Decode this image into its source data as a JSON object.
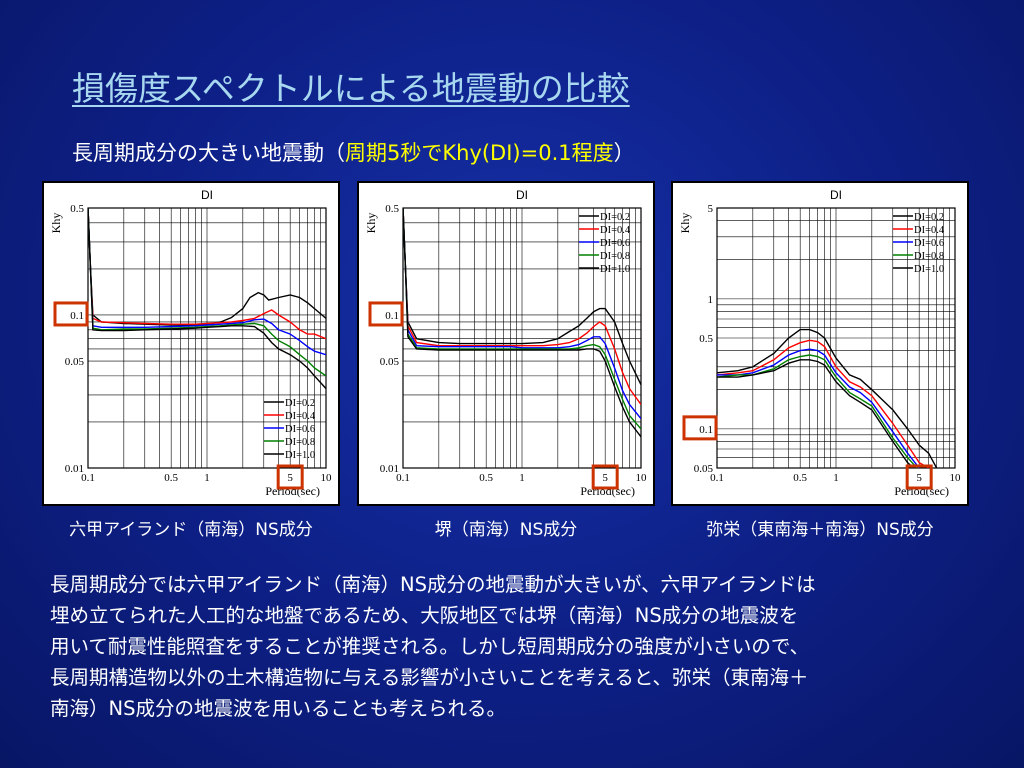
{
  "slide": {
    "title": "損傷度スペクトルによる地震動の比較",
    "subtitle_main": "長周期成分の大きい地震動（",
    "subtitle_highlight": "周期5秒でKhy(DI)=0.1程度",
    "subtitle_end": "）",
    "highlight_color": "#ffff00",
    "body_lines": [
      "長周期成分では六甲アイランド（南海）NS成分の地震動が大きいが、六甲アイランドは",
      "埋め立てられた人工的な地盤であるため、大阪地区では堺（南海）NS成分の地震波を",
      "用いて耐震性能照査をすることが推奨される。しかし短周期成分の強度が小さいので、",
      "長周期構造物以外の土木構造物に与える影響が小さいことを考えると、弥栄（東南海＋",
      "南海）NS成分の地震波を用いることも考えられる。"
    ]
  },
  "chart_data": [
    {
      "type": "line",
      "title": "DI",
      "caption": "六甲アイランド（南海）NS成分",
      "xlabel": "Period(sec)",
      "ylabel": "Khy",
      "xscale": "log",
      "yscale": "log",
      "xlim": [
        0.1,
        10
      ],
      "ylim": [
        0.01,
        0.5
      ],
      "xticks": [
        "0.1",
        "0.5",
        "1",
        "5",
        "10"
      ],
      "yticks": [
        "0.01",
        "0.05",
        "0.1",
        "0.5"
      ],
      "legend_position": "bottom-right",
      "highlight_boxes": [
        "0.1",
        "5"
      ],
      "highlight_color": "#cc3300",
      "series": [
        {
          "name": "DI=0.2",
          "color": "#000000",
          "x": [
            0.1,
            0.105,
            0.11,
            0.13,
            0.2,
            0.3,
            0.5,
            0.8,
            1.0,
            1.3,
            1.6,
            2.0,
            2.3,
            2.7,
            3.0,
            3.3,
            4.0,
            5.0,
            6.0,
            7.0,
            8.0,
            10.0
          ],
          "y": [
            0.5,
            0.2,
            0.1,
            0.09,
            0.088,
            0.087,
            0.086,
            0.086,
            0.087,
            0.09,
            0.096,
            0.11,
            0.13,
            0.14,
            0.135,
            0.125,
            0.13,
            0.135,
            0.13,
            0.12,
            0.11,
            0.095
          ]
        },
        {
          "name": "DI=0.4",
          "color": "#ff0000",
          "x": [
            0.1,
            0.105,
            0.11,
            0.13,
            0.2,
            0.3,
            0.5,
            0.8,
            1.0,
            1.3,
            1.6,
            2.0,
            2.5,
            3.0,
            3.5,
            4.0,
            5.0,
            6.0,
            7.0,
            8.0,
            10.0
          ],
          "y": [
            0.5,
            0.2,
            0.095,
            0.09,
            0.089,
            0.088,
            0.087,
            0.087,
            0.088,
            0.089,
            0.09,
            0.092,
            0.095,
            0.102,
            0.108,
            0.1,
            0.09,
            0.08,
            0.075,
            0.075,
            0.07
          ]
        },
        {
          "name": "DI=0.6",
          "color": "#0000ff",
          "x": [
            0.1,
            0.105,
            0.11,
            0.13,
            0.2,
            0.3,
            0.5,
            0.8,
            1.0,
            1.3,
            1.6,
            2.0,
            2.5,
            3.0,
            3.5,
            4.0,
            5.0,
            6.0,
            7.0,
            8.0,
            10.0
          ],
          "y": [
            0.5,
            0.2,
            0.085,
            0.083,
            0.083,
            0.083,
            0.084,
            0.085,
            0.086,
            0.087,
            0.088,
            0.089,
            0.093,
            0.094,
            0.088,
            0.08,
            0.075,
            0.068,
            0.062,
            0.058,
            0.055
          ]
        },
        {
          "name": "DI=0.8",
          "color": "#008000",
          "x": [
            0.1,
            0.105,
            0.11,
            0.13,
            0.2,
            0.3,
            0.5,
            0.8,
            1.0,
            1.3,
            1.6,
            2.0,
            2.5,
            3.0,
            3.5,
            4.0,
            5.0,
            6.0,
            7.0,
            8.0,
            10.0
          ],
          "y": [
            0.5,
            0.2,
            0.082,
            0.08,
            0.081,
            0.081,
            0.082,
            0.083,
            0.084,
            0.085,
            0.086,
            0.087,
            0.088,
            0.085,
            0.075,
            0.068,
            0.062,
            0.055,
            0.05,
            0.045,
            0.04
          ]
        },
        {
          "name": "DI=1.0",
          "color": "#000000",
          "x": [
            0.1,
            0.105,
            0.11,
            0.13,
            0.2,
            0.3,
            0.5,
            0.8,
            1.0,
            1.3,
            1.6,
            2.0,
            2.5,
            3.0,
            3.5,
            4.0,
            5.0,
            6.0,
            7.0,
            8.0,
            10.0
          ],
          "y": [
            0.5,
            0.2,
            0.08,
            0.079,
            0.079,
            0.08,
            0.081,
            0.082,
            0.083,
            0.084,
            0.085,
            0.085,
            0.084,
            0.076,
            0.066,
            0.06,
            0.055,
            0.05,
            0.045,
            0.04,
            0.033
          ]
        }
      ]
    },
    {
      "type": "line",
      "title": "DI",
      "caption": "堺（南海）NS成分",
      "xlabel": "Period(sec)",
      "ylabel": "Khy",
      "xscale": "log",
      "yscale": "log",
      "xlim": [
        0.1,
        10
      ],
      "ylim": [
        0.01,
        0.5
      ],
      "xticks": [
        "0.1",
        "0.5",
        "1",
        "5",
        "10"
      ],
      "yticks": [
        "0.01",
        "0.05",
        "0.1",
        "0.5"
      ],
      "legend_position": "top-right",
      "highlight_boxes": [
        "0.1",
        "5"
      ],
      "highlight_color": "#cc3300",
      "series": [
        {
          "name": "DI=0.2",
          "color": "#000000",
          "x": [
            0.1,
            0.105,
            0.11,
            0.13,
            0.2,
            0.3,
            0.5,
            0.8,
            1.0,
            1.5,
            2.0,
            2.5,
            3.0,
            3.5,
            4.0,
            4.5,
            5.0,
            6.0,
            7.0,
            8.0,
            10.0
          ],
          "y": [
            0.5,
            0.2,
            0.09,
            0.07,
            0.066,
            0.065,
            0.065,
            0.065,
            0.065,
            0.066,
            0.07,
            0.078,
            0.085,
            0.095,
            0.105,
            0.11,
            0.11,
            0.09,
            0.065,
            0.05,
            0.035
          ]
        },
        {
          "name": "DI=0.4",
          "color": "#ff0000",
          "x": [
            0.1,
            0.105,
            0.11,
            0.13,
            0.2,
            0.3,
            0.5,
            0.8,
            1.0,
            1.5,
            2.0,
            2.5,
            3.0,
            3.5,
            4.0,
            4.5,
            5.0,
            6.0,
            7.0,
            8.0,
            10.0
          ],
          "y": [
            0.5,
            0.2,
            0.085,
            0.066,
            0.063,
            0.063,
            0.063,
            0.063,
            0.063,
            0.063,
            0.064,
            0.066,
            0.07,
            0.076,
            0.084,
            0.09,
            0.085,
            0.06,
            0.042,
            0.033,
            0.026
          ]
        },
        {
          "name": "DI=0.6",
          "color": "#0000ff",
          "x": [
            0.1,
            0.105,
            0.11,
            0.13,
            0.2,
            0.3,
            0.5,
            0.8,
            1.0,
            1.5,
            2.0,
            2.5,
            3.0,
            3.5,
            4.0,
            4.5,
            5.0,
            6.0,
            7.0,
            8.0,
            10.0
          ],
          "y": [
            0.5,
            0.2,
            0.08,
            0.063,
            0.062,
            0.062,
            0.062,
            0.062,
            0.061,
            0.061,
            0.061,
            0.062,
            0.064,
            0.068,
            0.072,
            0.072,
            0.065,
            0.045,
            0.032,
            0.026,
            0.021
          ]
        },
        {
          "name": "DI=0.8",
          "color": "#008000",
          "x": [
            0.1,
            0.105,
            0.11,
            0.13,
            0.2,
            0.3,
            0.5,
            0.8,
            1.0,
            1.5,
            2.0,
            2.5,
            3.0,
            3.5,
            4.0,
            4.5,
            5.0,
            6.0,
            7.0,
            8.0,
            10.0
          ],
          "y": [
            0.5,
            0.2,
            0.075,
            0.061,
            0.06,
            0.06,
            0.06,
            0.06,
            0.06,
            0.06,
            0.06,
            0.06,
            0.061,
            0.063,
            0.064,
            0.062,
            0.055,
            0.038,
            0.028,
            0.022,
            0.018
          ]
        },
        {
          "name": "DI=1.0",
          "color": "#000000",
          "x": [
            0.1,
            0.105,
            0.11,
            0.13,
            0.2,
            0.3,
            0.5,
            0.8,
            1.0,
            1.5,
            2.0,
            2.5,
            3.0,
            3.5,
            4.0,
            4.5,
            5.0,
            6.0,
            7.0,
            8.0,
            10.0
          ],
          "y": [
            0.5,
            0.2,
            0.072,
            0.06,
            0.059,
            0.059,
            0.059,
            0.059,
            0.059,
            0.059,
            0.059,
            0.059,
            0.059,
            0.06,
            0.06,
            0.058,
            0.05,
            0.034,
            0.025,
            0.02,
            0.016
          ]
        }
      ]
    },
    {
      "type": "line",
      "title": "DI",
      "caption": "弥栄（東南海＋南海）NS成分",
      "xlabel": "Period(sec)",
      "ylabel": "Khy",
      "xscale": "log",
      "yscale": "log",
      "xlim": [
        0.1,
        10
      ],
      "ylim": [
        0.05,
        5
      ],
      "xticks": [
        "0.1",
        "0.5",
        "1",
        "5",
        "10"
      ],
      "yticks": [
        "0.05",
        "0.1",
        "0.5",
        "1",
        "5"
      ],
      "legend_position": "top-right",
      "highlight_boxes": [
        "0.1",
        "5"
      ],
      "highlight_color": "#cc3300",
      "series": [
        {
          "name": "DI=0.2",
          "color": "#000000",
          "x": [
            0.1,
            0.15,
            0.2,
            0.3,
            0.4,
            0.5,
            0.6,
            0.7,
            0.8,
            1.0,
            1.3,
            1.6,
            2.0,
            3.0,
            4.0,
            5.0,
            6.0,
            7.0
          ],
          "y": [
            0.27,
            0.28,
            0.3,
            0.38,
            0.5,
            0.58,
            0.58,
            0.55,
            0.5,
            0.35,
            0.26,
            0.24,
            0.2,
            0.14,
            0.1,
            0.075,
            0.065,
            0.05
          ]
        },
        {
          "name": "DI=0.4",
          "color": "#ff0000",
          "x": [
            0.1,
            0.15,
            0.2,
            0.3,
            0.4,
            0.5,
            0.6,
            0.7,
            0.8,
            1.0,
            1.3,
            1.6,
            2.0,
            3.0,
            4.0,
            5.0,
            6.0
          ],
          "y": [
            0.26,
            0.27,
            0.28,
            0.34,
            0.42,
            0.46,
            0.48,
            0.47,
            0.43,
            0.3,
            0.23,
            0.21,
            0.18,
            0.11,
            0.075,
            0.055,
            0.05
          ]
        },
        {
          "name": "DI=0.6",
          "color": "#0000ff",
          "x": [
            0.1,
            0.15,
            0.2,
            0.3,
            0.4,
            0.5,
            0.6,
            0.7,
            0.8,
            1.0,
            1.3,
            1.6,
            2.0,
            3.0,
            4.0,
            5.0
          ],
          "y": [
            0.26,
            0.26,
            0.27,
            0.31,
            0.37,
            0.4,
            0.41,
            0.4,
            0.37,
            0.27,
            0.21,
            0.19,
            0.16,
            0.095,
            0.065,
            0.05
          ]
        },
        {
          "name": "DI=0.8",
          "color": "#008000",
          "x": [
            0.1,
            0.15,
            0.2,
            0.3,
            0.4,
            0.5,
            0.6,
            0.7,
            0.8,
            1.0,
            1.3,
            1.6,
            2.0,
            3.0,
            4.0,
            4.8
          ],
          "y": [
            0.25,
            0.26,
            0.26,
            0.29,
            0.34,
            0.36,
            0.37,
            0.36,
            0.34,
            0.25,
            0.19,
            0.17,
            0.15,
            0.085,
            0.06,
            0.05
          ]
        },
        {
          "name": "DI=1.0",
          "color": "#000000",
          "x": [
            0.1,
            0.15,
            0.2,
            0.3,
            0.4,
            0.5,
            0.6,
            0.7,
            0.8,
            1.0,
            1.3,
            1.6,
            2.0,
            3.0,
            4.0,
            4.5
          ],
          "y": [
            0.25,
            0.25,
            0.26,
            0.28,
            0.32,
            0.34,
            0.34,
            0.33,
            0.31,
            0.23,
            0.18,
            0.16,
            0.14,
            0.08,
            0.055,
            0.05
          ]
        }
      ]
    }
  ]
}
